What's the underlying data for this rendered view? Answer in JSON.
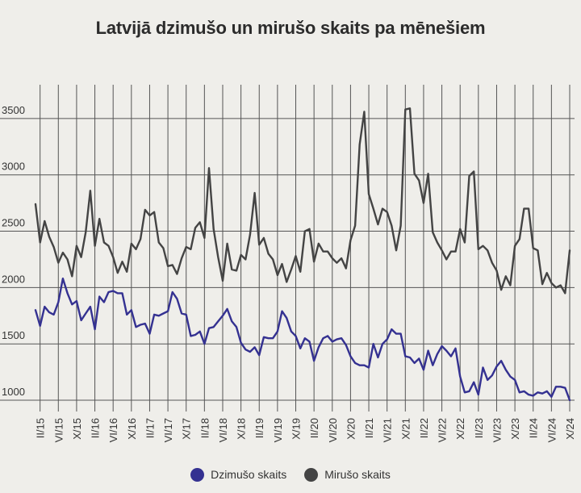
{
  "chart_data": {
    "type": "line",
    "title": "Latvijā dzimušo un mirušo skaits pa mēnešiem",
    "xlabel": "",
    "ylabel": "",
    "x_tick_labels": [
      "II/15",
      "VI/15",
      "X/15",
      "II/16",
      "VI/16",
      "X/16",
      "II/17",
      "VI/17",
      "X/17",
      "II/18",
      "VI/18",
      "X/18",
      "II/19",
      "VI/19",
      "X/19",
      "II/20",
      "VI/20",
      "X/20",
      "II/21",
      "VI/21",
      "X/21",
      "II/22",
      "VI/22",
      "X/22",
      "II/23",
      "VI/23",
      "X/23",
      "II/24",
      "VI/24",
      "X/24"
    ],
    "y_ticks": [
      1000,
      1500,
      2000,
      2500,
      3000,
      3500
    ],
    "ylim": [
      900,
      3800
    ],
    "grid": true,
    "legend_position": "bottom-center",
    "series": [
      {
        "name": "Dzimušo skaits",
        "color": "#343191",
        "values": [
          1800,
          1660,
          1830,
          1780,
          1760,
          1870,
          2080,
          1950,
          1850,
          1880,
          1710,
          1770,
          1830,
          1630,
          1920,
          1870,
          1960,
          1970,
          1950,
          1950,
          1760,
          1800,
          1650,
          1670,
          1680,
          1590,
          1760,
          1750,
          1770,
          1790,
          1960,
          1900,
          1770,
          1760,
          1570,
          1580,
          1610,
          1500,
          1640,
          1650,
          1700,
          1750,
          1810,
          1700,
          1650,
          1510,
          1450,
          1430,
          1470,
          1400,
          1560,
          1550,
          1550,
          1610,
          1790,
          1730,
          1610,
          1570,
          1460,
          1550,
          1520,
          1350,
          1470,
          1550,
          1570,
          1520,
          1540,
          1550,
          1490,
          1390,
          1330,
          1310,
          1310,
          1290,
          1500,
          1380,
          1500,
          1540,
          1630,
          1590,
          1590,
          1390,
          1380,
          1330,
          1370,
          1270,
          1440,
          1310,
          1410,
          1480,
          1440,
          1390,
          1460,
          1210,
          1070,
          1080,
          1160,
          1050,
          1290,
          1180,
          1220,
          1300,
          1350,
          1270,
          1210,
          1180,
          1070,
          1080,
          1050,
          1040,
          1070,
          1060,
          1080,
          1030,
          1120,
          1120,
          1110,
          1000
        ]
      },
      {
        "name": "Mirušo skaits",
        "color": "#444444",
        "values": [
          2740,
          2400,
          2590,
          2450,
          2360,
          2220,
          2310,
          2250,
          2100,
          2370,
          2270,
          2490,
          2860,
          2370,
          2610,
          2400,
          2370,
          2270,
          2130,
          2230,
          2140,
          2390,
          2340,
          2430,
          2690,
          2640,
          2670,
          2400,
          2350,
          2190,
          2200,
          2120,
          2260,
          2360,
          2340,
          2530,
          2580,
          2440,
          3060,
          2520,
          2270,
          2060,
          2390,
          2160,
          2150,
          2290,
          2250,
          2470,
          2840,
          2380,
          2440,
          2300,
          2250,
          2110,
          2210,
          2050,
          2160,
          2280,
          2140,
          2500,
          2520,
          2230,
          2390,
          2320,
          2320,
          2260,
          2220,
          2260,
          2170,
          2420,
          2550,
          3270,
          3560,
          2830,
          2700,
          2560,
          2700,
          2670,
          2550,
          2330,
          2550,
          3580,
          3590,
          3010,
          2950,
          2750,
          3010,
          2490,
          2400,
          2330,
          2250,
          2320,
          2320,
          2520,
          2400,
          2990,
          3030,
          2340,
          2370,
          2330,
          2220,
          2150,
          1980,
          2100,
          2020,
          2370,
          2430,
          2700,
          2700,
          2350,
          2330,
          2030,
          2130,
          2040,
          2000,
          2020,
          1950,
          2330
        ]
      }
    ]
  }
}
